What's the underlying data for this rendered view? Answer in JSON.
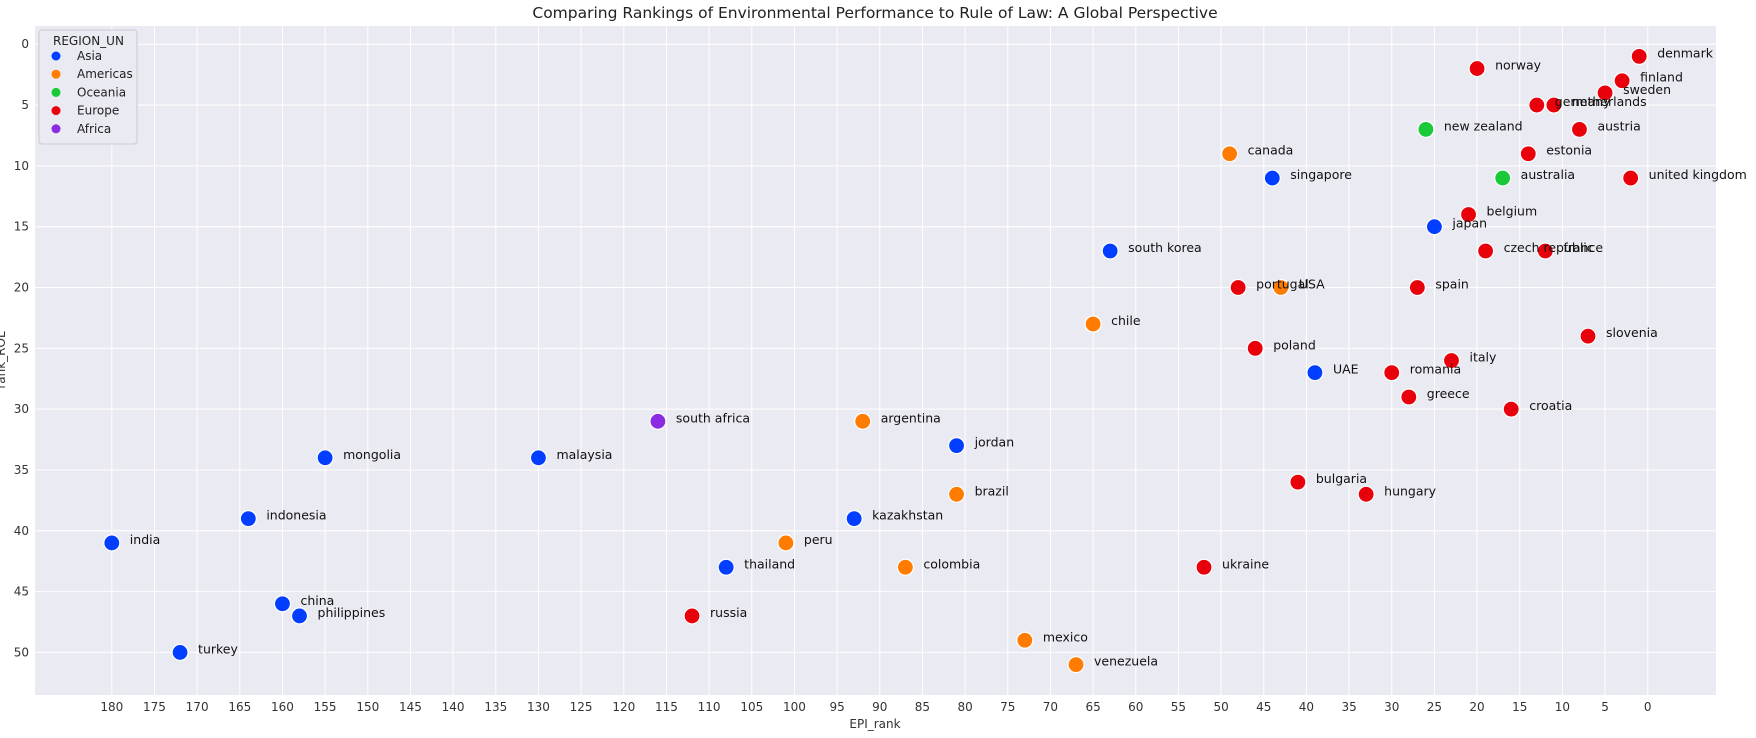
{
  "chart_data": {
    "type": "scatter",
    "title": "Comparing Rankings of Environmental Performance to Rule of Law: A Global Perspective",
    "xlabel": "EPI_rank",
    "ylabel": "rank_ROL",
    "xlim": [
      189,
      -8
    ],
    "ylim": [
      53.5,
      -1.5
    ],
    "x_inverted": true,
    "y_inverted": true,
    "xticks": [
      180,
      175,
      170,
      165,
      160,
      155,
      150,
      145,
      140,
      135,
      130,
      125,
      120,
      115,
      110,
      105,
      100,
      95,
      90,
      85,
      80,
      75,
      70,
      65,
      60,
      55,
      50,
      45,
      40,
      35,
      30,
      25,
      20,
      15,
      10,
      5,
      0
    ],
    "yticks": [
      0,
      5,
      10,
      15,
      20,
      25,
      30,
      35,
      40,
      45,
      50
    ],
    "grid": true,
    "legend": {
      "title": "REGION_UN",
      "position": "top-left",
      "entries": [
        {
          "name": "Asia",
          "color": "#023eff"
        },
        {
          "name": "Americas",
          "color": "#ff7c00"
        },
        {
          "name": "Oceania",
          "color": "#1ac938"
        },
        {
          "name": "Europe",
          "color": "#e8000b"
        },
        {
          "name": "Africa",
          "color": "#8b2be2"
        }
      ]
    },
    "points": [
      {
        "label": "denmark",
        "x": 1,
        "y": 1,
        "region": "Europe"
      },
      {
        "label": "norway",
        "x": 20,
        "y": 2,
        "region": "Europe"
      },
      {
        "label": "finland",
        "x": 3,
        "y": 3,
        "region": "Europe"
      },
      {
        "label": "sweden",
        "x": 5,
        "y": 4,
        "region": "Europe"
      },
      {
        "label": "germany",
        "x": 13,
        "y": 5,
        "region": "Europe"
      },
      {
        "label": "netherlands",
        "x": 11,
        "y": 5,
        "region": "Europe"
      },
      {
        "label": "austria",
        "x": 8,
        "y": 7,
        "region": "Europe"
      },
      {
        "label": "new zealand",
        "x": 26,
        "y": 7,
        "region": "Oceania"
      },
      {
        "label": "canada",
        "x": 49,
        "y": 9,
        "region": "Americas"
      },
      {
        "label": "estonia",
        "x": 14,
        "y": 9,
        "region": "Europe"
      },
      {
        "label": "singapore",
        "x": 44,
        "y": 11,
        "region": "Asia"
      },
      {
        "label": "australia",
        "x": 17,
        "y": 11,
        "region": "Oceania"
      },
      {
        "label": "united kingdom",
        "x": 2,
        "y": 11,
        "region": "Europe"
      },
      {
        "label": "belgium",
        "x": 21,
        "y": 14,
        "region": "Europe"
      },
      {
        "label": "japan",
        "x": 25,
        "y": 15,
        "region": "Asia"
      },
      {
        "label": "czech republic",
        "x": 19,
        "y": 17,
        "region": "Europe"
      },
      {
        "label": "france",
        "x": 12,
        "y": 17,
        "region": "Europe"
      },
      {
        "label": "south korea",
        "x": 63,
        "y": 17,
        "region": "Asia"
      },
      {
        "label": "portugal",
        "x": 48,
        "y": 20,
        "region": "Europe"
      },
      {
        "label": "USA",
        "x": 43,
        "y": 20,
        "region": "Americas"
      },
      {
        "label": "spain",
        "x": 27,
        "y": 20,
        "region": "Europe"
      },
      {
        "label": "chile",
        "x": 65,
        "y": 23,
        "region": "Americas"
      },
      {
        "label": "slovenia",
        "x": 7,
        "y": 24,
        "region": "Europe"
      },
      {
        "label": "poland",
        "x": 46,
        "y": 25,
        "region": "Europe"
      },
      {
        "label": "italy",
        "x": 23,
        "y": 26,
        "region": "Europe"
      },
      {
        "label": "UAE",
        "x": 39,
        "y": 27,
        "region": "Asia"
      },
      {
        "label": "romania",
        "x": 30,
        "y": 27,
        "region": "Europe"
      },
      {
        "label": "greece",
        "x": 28,
        "y": 29,
        "region": "Europe"
      },
      {
        "label": "croatia",
        "x": 16,
        "y": 30,
        "region": "Europe"
      },
      {
        "label": "south africa",
        "x": 116,
        "y": 31,
        "region": "Africa"
      },
      {
        "label": "argentina",
        "x": 92,
        "y": 31,
        "region": "Americas"
      },
      {
        "label": "jordan",
        "x": 81,
        "y": 33,
        "region": "Asia"
      },
      {
        "label": "mongolia",
        "x": 155,
        "y": 34,
        "region": "Asia"
      },
      {
        "label": "malaysia",
        "x": 130,
        "y": 34,
        "region": "Asia"
      },
      {
        "label": "bulgaria",
        "x": 41,
        "y": 36,
        "region": "Europe"
      },
      {
        "label": "brazil",
        "x": 81,
        "y": 37,
        "region": "Americas"
      },
      {
        "label": "hungary",
        "x": 33,
        "y": 37,
        "region": "Europe"
      },
      {
        "label": "indonesia",
        "x": 164,
        "y": 39,
        "region": "Asia"
      },
      {
        "label": "kazakhstan",
        "x": 93,
        "y": 39,
        "region": "Asia"
      },
      {
        "label": "india",
        "x": 180,
        "y": 41,
        "region": "Asia"
      },
      {
        "label": "peru",
        "x": 101,
        "y": 41,
        "region": "Americas"
      },
      {
        "label": "thailand",
        "x": 108,
        "y": 43,
        "region": "Asia"
      },
      {
        "label": "colombia",
        "x": 87,
        "y": 43,
        "region": "Americas"
      },
      {
        "label": "ukraine",
        "x": 52,
        "y": 43,
        "region": "Europe"
      },
      {
        "label": "china",
        "x": 160,
        "y": 46,
        "region": "Asia"
      },
      {
        "label": "philippines",
        "x": 158,
        "y": 47,
        "region": "Asia"
      },
      {
        "label": "russia",
        "x": 112,
        "y": 47,
        "region": "Europe"
      },
      {
        "label": "mexico",
        "x": 73,
        "y": 49,
        "region": "Americas"
      },
      {
        "label": "turkey",
        "x": 172,
        "y": 50,
        "region": "Asia"
      },
      {
        "label": "venezuela",
        "x": 67,
        "y": 51,
        "region": "Americas"
      }
    ]
  }
}
